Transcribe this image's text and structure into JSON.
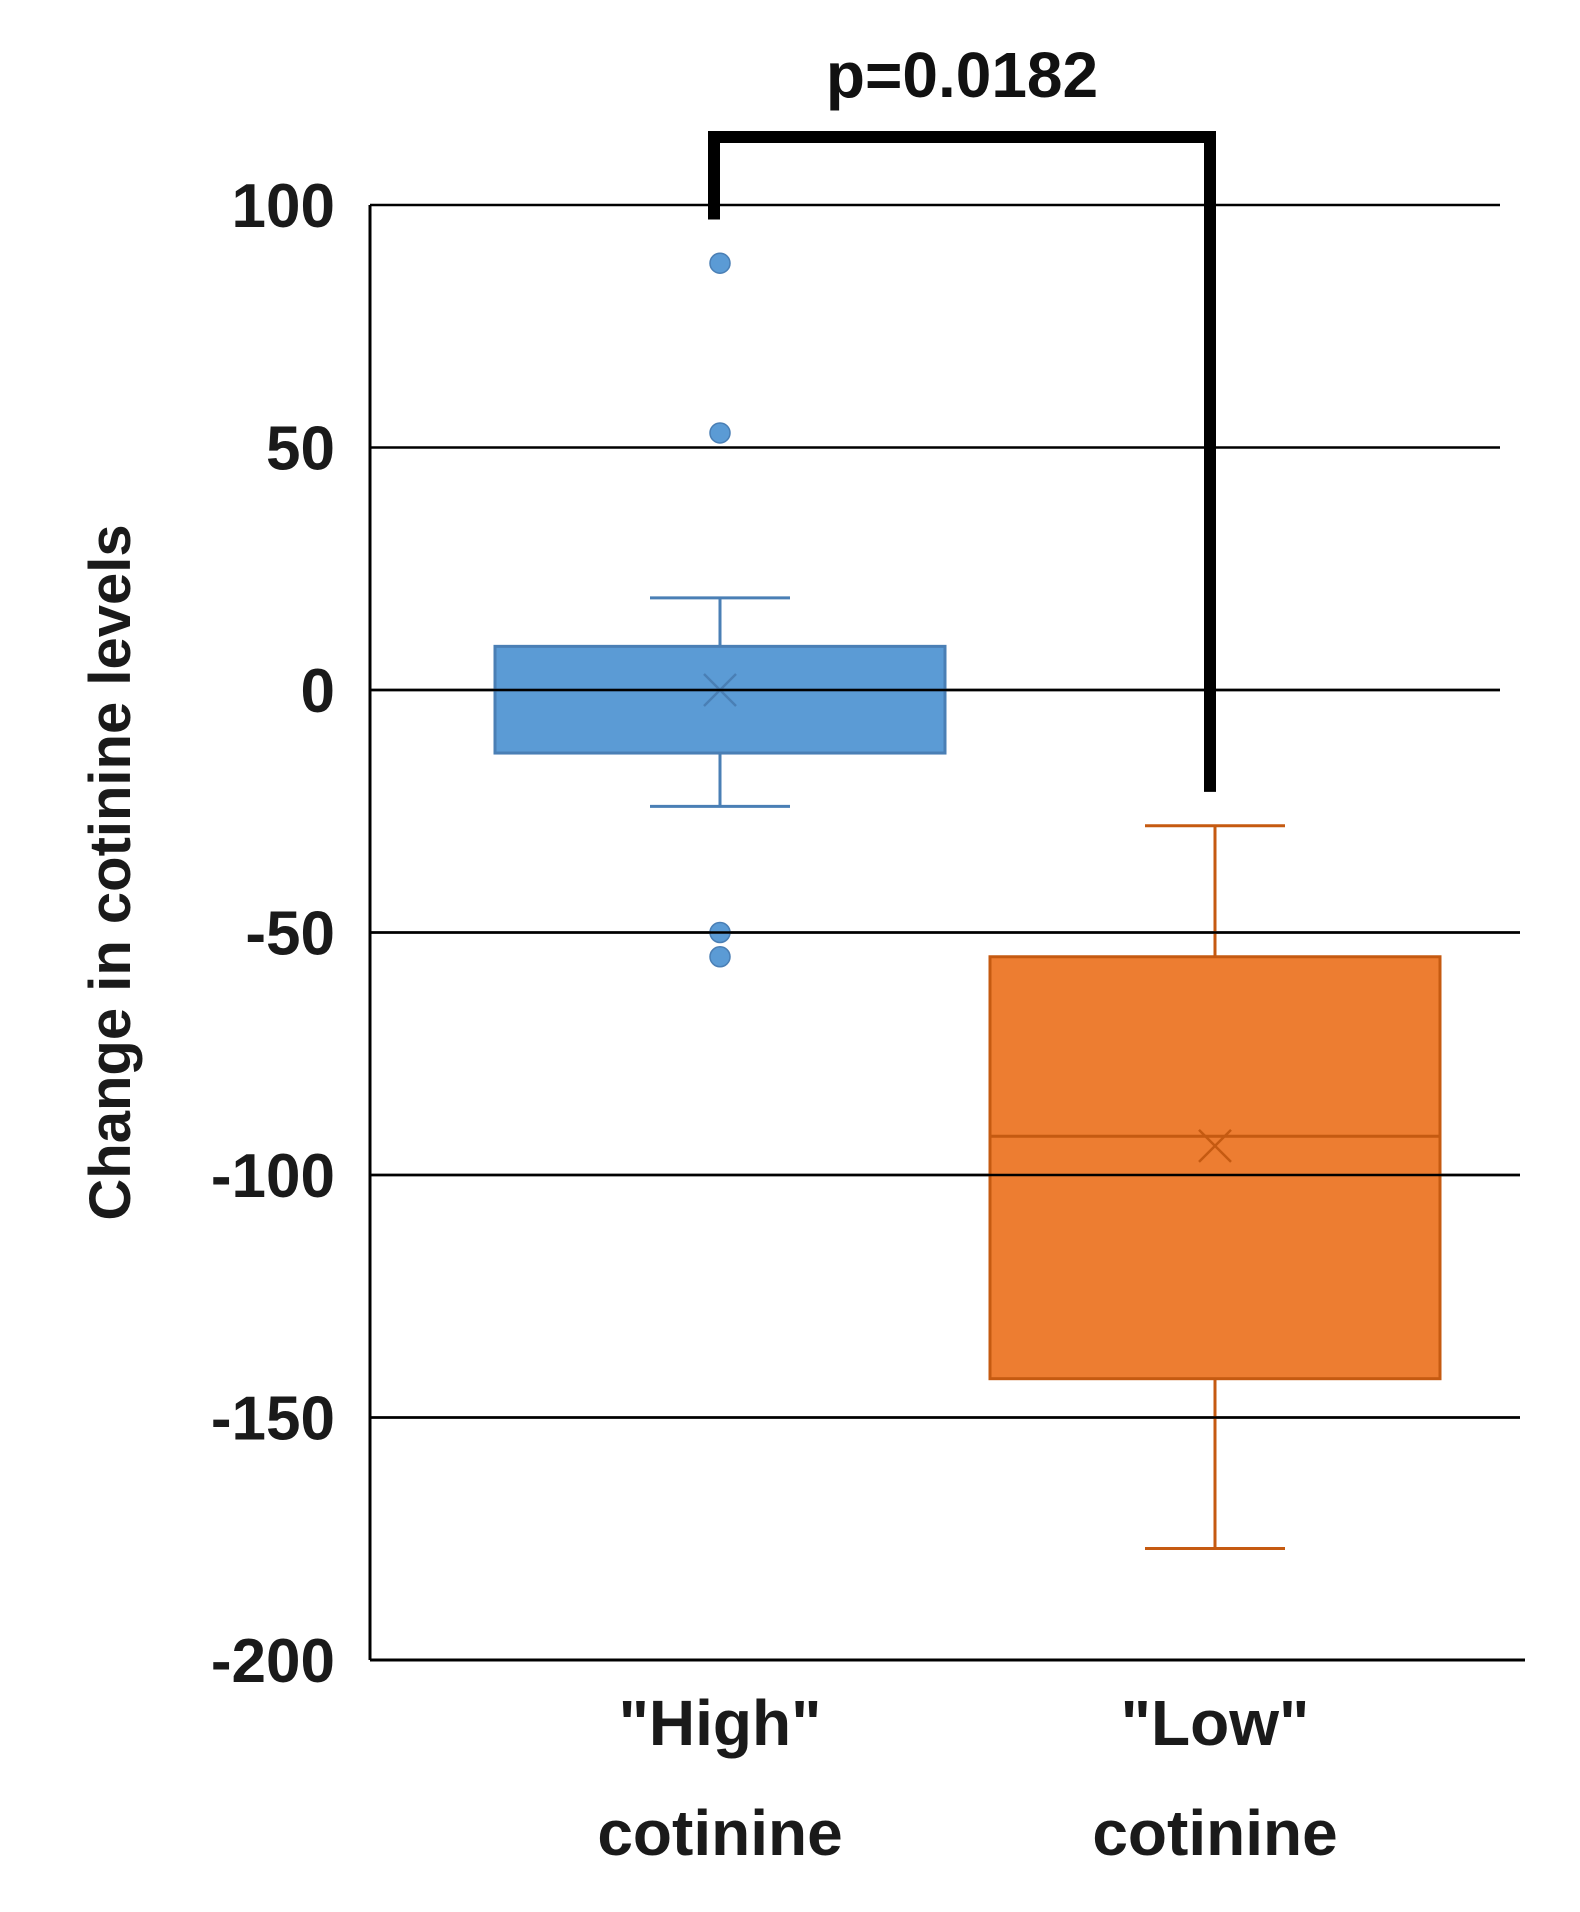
{
  "chart_data": {
    "type": "box",
    "ylabel": "Change in cotinine levels",
    "ylim": [
      -200,
      100
    ],
    "yticks": [
      100,
      50,
      0,
      -50,
      -100,
      -150,
      -200
    ],
    "ytick_labels": [
      "100",
      "50",
      "0",
      "-50",
      "-100",
      "-150",
      "-200"
    ],
    "grid": true,
    "categories": [
      {
        "line1": "\"High\"",
        "line2": "cotinine"
      },
      {
        "line1": "\"Low\"",
        "line2": "cotinine"
      }
    ],
    "series": [
      {
        "name": "\"High\" cotinine",
        "color": "#5b9bd5",
        "stroke": "#4a7fb5",
        "whisker_low": -24,
        "q1": -13,
        "median": 0,
        "mean": 0,
        "q3": 9,
        "whisker_high": 19,
        "outliers": [
          88,
          53,
          -50,
          -55
        ]
      },
      {
        "name": "\"Low\" cotinine",
        "color": "#ed7d31",
        "stroke": "#c55a11",
        "whisker_low": -177,
        "q1": -142,
        "median": -92,
        "mean": -94,
        "q3": -55,
        "whisker_high": -28
      }
    ],
    "annotation": {
      "text": "p=0.0182",
      "from": 0,
      "to": 1
    }
  }
}
